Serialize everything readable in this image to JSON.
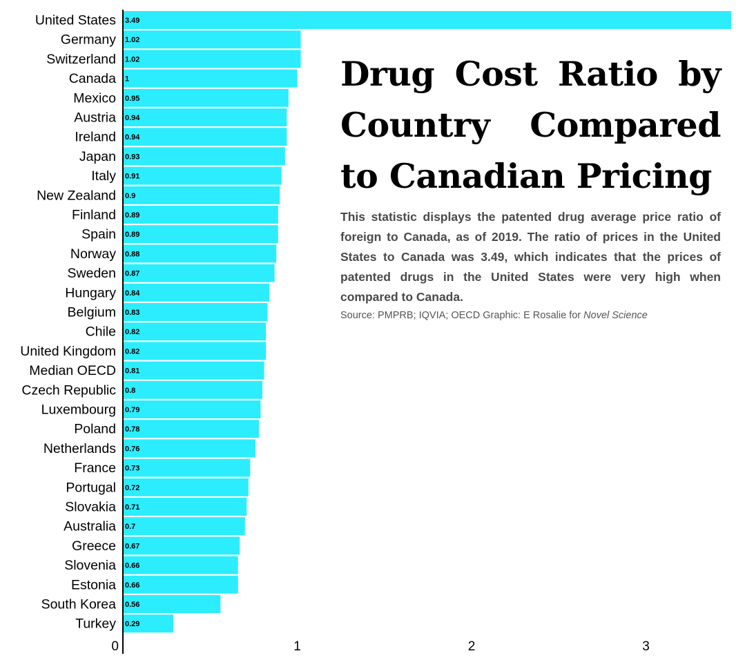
{
  "chart_data": {
    "type": "bar",
    "orientation": "horizontal",
    "title": "Drug Cost Ratio by Country  Compared to Canadian Pricing",
    "subtitle": "This statistic displays the patented drug average price ratio of foreign to Canada, as of 2019. The ratio of prices in the United States to Canada was 3.49, which indicates that the prices of patented drugs in the United States were very high when compared to Canada.",
    "source": {
      "prefix": "Source: PMPRB; IQVIA; OECD Graphic: E Rosalie for ",
      "publication": "Novel Science"
    },
    "xlabel": "",
    "ylabel": "",
    "xlim": [
      0,
      3.5
    ],
    "xticks": [
      0,
      1,
      2,
      3
    ],
    "grid": false,
    "legend": "none",
    "bar_color": "#2BEDFE",
    "categories": [
      "United States",
      "Germany",
      "Switzerland",
      "Canada",
      "Mexico",
      "Austria",
      "Ireland",
      "Japan",
      "Italy",
      "New Zealand",
      "Finland",
      "Spain",
      "Norway",
      "Sweden",
      "Hungary",
      "Belgium",
      "Chile",
      "United Kingdom",
      "Median OECD",
      "Czech Republic",
      "Luxembourg",
      "Poland",
      "Netherlands",
      "France",
      "Portugal",
      "Slovakia",
      "Australia",
      "Greece",
      "Slovenia",
      "Estonia",
      "South Korea",
      "Turkey"
    ],
    "values": [
      3.49,
      1.02,
      1.02,
      1,
      0.95,
      0.94,
      0.94,
      0.93,
      0.91,
      0.9,
      0.89,
      0.89,
      0.88,
      0.87,
      0.84,
      0.83,
      0.82,
      0.82,
      0.81,
      0.8,
      0.79,
      0.78,
      0.76,
      0.73,
      0.72,
      0.71,
      0.7,
      0.67,
      0.66,
      0.66,
      0.56,
      0.29
    ]
  }
}
